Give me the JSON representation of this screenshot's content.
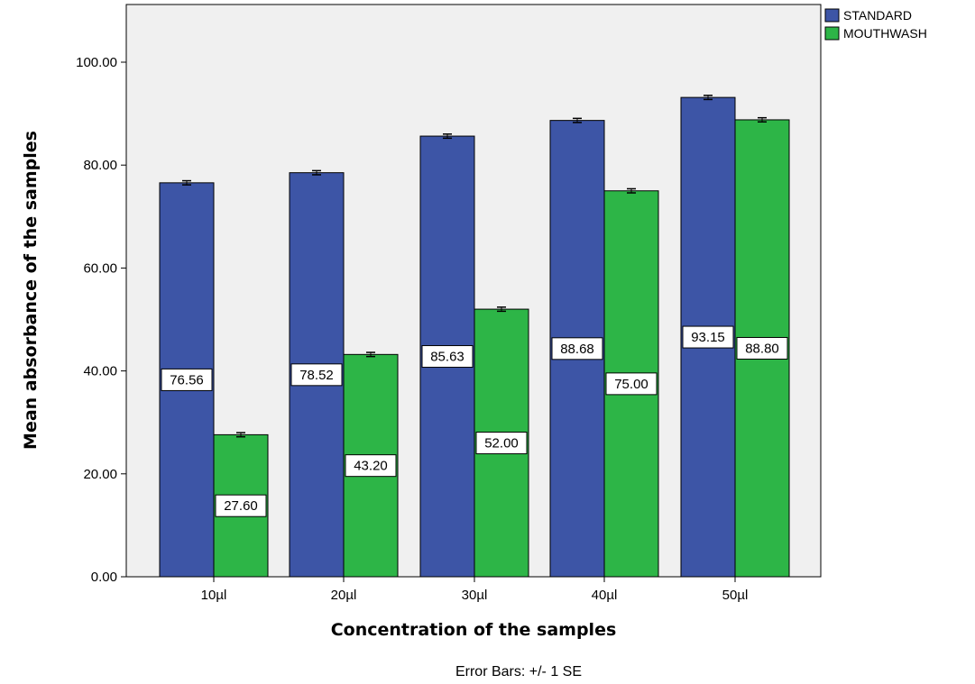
{
  "chart_data": {
    "type": "bar",
    "categories": [
      "10µl",
      "20µl",
      "30µl",
      "40µl",
      "50µl"
    ],
    "series": [
      {
        "name": "STANDARD",
        "color": "#3d55a6",
        "values": [
          76.56,
          78.52,
          85.63,
          88.68,
          93.15
        ],
        "labels": [
          "76.56",
          "78.52",
          "85.63",
          "88.68",
          "93.15"
        ],
        "se": [
          0.4,
          0.4,
          0.4,
          0.4,
          0.4
        ]
      },
      {
        "name": "MOUTHWASH",
        "color": "#2db547",
        "values": [
          27.6,
          43.2,
          52.0,
          75.0,
          88.8
        ],
        "labels": [
          "27.60",
          "43.20",
          "52.00",
          "75.00",
          "88.80"
        ],
        "se": [
          0.4,
          0.4,
          0.4,
          0.4,
          0.4
        ]
      }
    ],
    "title": "",
    "xlabel": "Concentration of the samples",
    "ylabel": "Mean absorbance of the samples",
    "ylim": [
      0,
      110
    ],
    "yticks": [
      0,
      20,
      40,
      60,
      80,
      100
    ],
    "ytick_labels": [
      "0.00",
      "20.00",
      "40.00",
      "60.00",
      "80.00",
      "100.00"
    ],
    "note": "Error Bars: +/- 1 SE",
    "legend_position": "top-right",
    "plot_background": "#f0f0f0",
    "grid": false
  }
}
